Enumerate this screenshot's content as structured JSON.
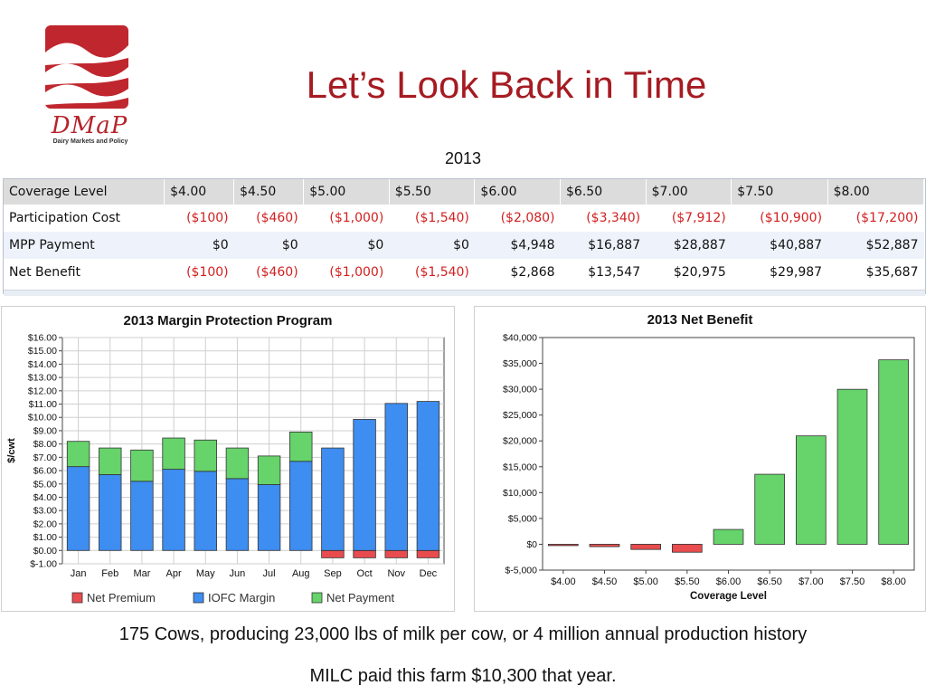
{
  "slide": {
    "title": "Let’s Look Back in Time",
    "year": "2013",
    "logo_text": "DMaP",
    "logo_sub": "Dairy Markets and Policy",
    "caption1": "175 Cows, producing 23,000 lbs of milk per cow, or 4 million annual production history",
    "caption2": "MILC paid this farm $10,300 that year."
  },
  "colors": {
    "title": "#a61b22",
    "logo": "#c0262e",
    "negative": "#d21f1f",
    "net_premium": "#e84c4f",
    "iofc_margin": "#3e8df0",
    "net_payment": "#66d36b"
  },
  "table": {
    "headers": [
      "Coverage Level",
      "$4.00",
      "$4.50",
      "$5.00",
      "$5.50",
      "$6.00",
      "$6.50",
      "$7.00",
      "$7.50",
      "$8.00"
    ],
    "rows": [
      {
        "label": "Participation Cost",
        "cells": [
          {
            "v": "($100)",
            "neg": true
          },
          {
            "v": "($460)",
            "neg": true
          },
          {
            "v": "($1,000)",
            "neg": true
          },
          {
            "v": "($1,540)",
            "neg": true
          },
          {
            "v": "($2,080)",
            "neg": true
          },
          {
            "v": "($3,340)",
            "neg": true
          },
          {
            "v": "($7,912)",
            "neg": true
          },
          {
            "v": "($10,900)",
            "neg": true
          },
          {
            "v": "($17,200)",
            "neg": true
          }
        ]
      },
      {
        "label": "MPP Payment",
        "cells": [
          {
            "v": "$0"
          },
          {
            "v": "$0"
          },
          {
            "v": "$0"
          },
          {
            "v": "$0"
          },
          {
            "v": "$4,948"
          },
          {
            "v": "$16,887"
          },
          {
            "v": "$28,887"
          },
          {
            "v": "$40,887"
          },
          {
            "v": "$52,887"
          }
        ]
      },
      {
        "label": "Net Benefit",
        "cells": [
          {
            "v": "($100)",
            "neg": true
          },
          {
            "v": "($460)",
            "neg": true
          },
          {
            "v": "($1,000)",
            "neg": true
          },
          {
            "v": "($1,540)",
            "neg": true
          },
          {
            "v": "$2,868"
          },
          {
            "v": "$13,547"
          },
          {
            "v": "$20,975"
          },
          {
            "v": "$29,987"
          },
          {
            "v": "$35,687"
          }
        ]
      }
    ]
  },
  "chart_data": [
    {
      "type": "bar",
      "stacked": true,
      "title": "2013 Margin Protection Program",
      "ylabel": "$/cwt",
      "xlabel": "",
      "ylim": [
        -1,
        16
      ],
      "yticks": [
        -1,
        0,
        1,
        2,
        3,
        4,
        5,
        6,
        7,
        8,
        9,
        10,
        11,
        12,
        13,
        14,
        15,
        16
      ],
      "ytick_labels": [
        "$-1.00",
        "$0.00",
        "$1.00",
        "$2.00",
        "$3.00",
        "$4.00",
        "$5.00",
        "$6.00",
        "$7.00",
        "$8.00",
        "$9.00",
        "$10.00",
        "$11.00",
        "$12.00",
        "$13.00",
        "$14.00",
        "$15.00",
        "$16.00"
      ],
      "categories": [
        "Jan",
        "Feb",
        "Mar",
        "Apr",
        "May",
        "Jun",
        "Jul",
        "Aug",
        "Sep",
        "Oct",
        "Nov",
        "Dec"
      ],
      "series": [
        {
          "name": "Net Premium",
          "color": "#e84c4f",
          "values": [
            0,
            0,
            0,
            0,
            0,
            0,
            0,
            0,
            -0.55,
            -0.55,
            -0.55,
            -0.55
          ]
        },
        {
          "name": "IOFC Margin",
          "color": "#3e8df0",
          "values": [
            6.3,
            5.7,
            5.2,
            6.1,
            5.95,
            5.4,
            4.95,
            6.7,
            7.7,
            9.85,
            11.05,
            11.2
          ]
        },
        {
          "name": "Net Payment",
          "color": "#66d36b",
          "values": [
            1.9,
            2.0,
            2.35,
            2.35,
            2.35,
            2.3,
            2.15,
            2.2,
            0,
            0,
            0,
            0
          ]
        }
      ],
      "grid": true,
      "legend": "bottom"
    },
    {
      "type": "bar",
      "title": "2013 Net Benefit",
      "xlabel": "Coverage Level",
      "ylabel": "",
      "ylim": [
        -5000,
        40000
      ],
      "yticks": [
        -5000,
        0,
        5000,
        10000,
        15000,
        20000,
        25000,
        30000,
        35000,
        40000
      ],
      "ytick_labels": [
        "$-5,000",
        "$0",
        "$5,000",
        "$10,000",
        "$15,000",
        "$20,000",
        "$25,000",
        "$30,000",
        "$35,000",
        "$40,000"
      ],
      "categories": [
        "$4.00",
        "$4.50",
        "$5.00",
        "$5.50",
        "$6.00",
        "$6.50",
        "$7.00",
        "$7.50",
        "$8.00"
      ],
      "values": [
        -100,
        -460,
        -1000,
        -1540,
        2868,
        13547,
        20975,
        29987,
        35687
      ],
      "positive_color": "#66d36b",
      "negative_color": "#e84c4f",
      "grid": false
    }
  ]
}
